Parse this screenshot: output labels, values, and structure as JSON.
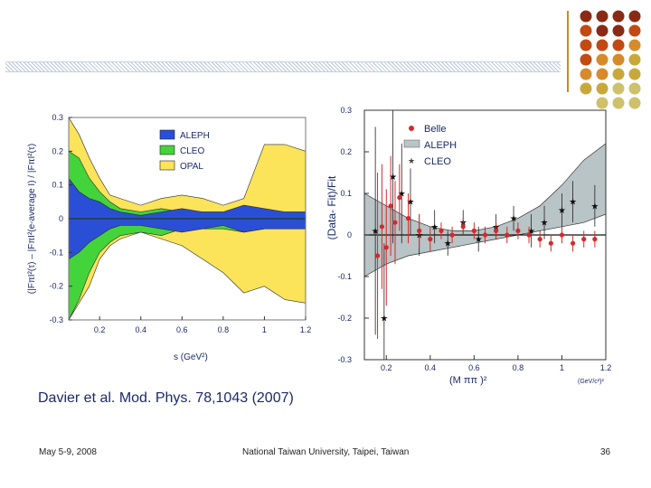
{
  "slide": {
    "caption": "Davier et al. Mod. Phys. 78,1043 (2007)",
    "footer_date": "May 5-9,  2008",
    "footer_venue": "National Taiwan University, Taipei, Taiwan",
    "page_number": "36",
    "dot_colors": [
      "#8b2a14",
      "#c24a12",
      "#d68a2a",
      "#c9a83a",
      "#cfc06a"
    ]
  },
  "chart_data": [
    {
      "type": "area",
      "title": "",
      "xlabel": "s  (GeV²)",
      "ylabel": "(|FπI²(τ) – |FπI²(e-average I) / |FπI²(τ)",
      "xlim": [
        0.05,
        1.2
      ],
      "ylim": [
        -0.3,
        0.3
      ],
      "x_ticks": [
        "0.2",
        "0.4",
        "0.6",
        "0.8",
        "1",
        "1.2"
      ],
      "y_ticks": [
        "0.3",
        "0.2",
        "0.1",
        "0",
        "-0.1",
        "-0.2",
        "-0.3"
      ],
      "legend": [
        "ALEPH",
        "CLEO",
        "OPAL"
      ],
      "legend_colors": [
        "#2a4fd6",
        "#43d43b",
        "#fbe35a"
      ],
      "legend_position": "top-right",
      "series": [
        {
          "name": "OPAL",
          "x": [
            0.05,
            0.1,
            0.15,
            0.2,
            0.25,
            0.3,
            0.4,
            0.5,
            0.6,
            0.7,
            0.8,
            0.9,
            1.0,
            1.1,
            1.2
          ],
          "upper": [
            0.3,
            0.25,
            0.18,
            0.12,
            0.07,
            0.06,
            0.04,
            0.06,
            0.07,
            0.06,
            0.04,
            0.06,
            0.22,
            0.22,
            0.2
          ],
          "lower": [
            -0.3,
            -0.25,
            -0.2,
            -0.12,
            -0.08,
            -0.06,
            -0.04,
            -0.06,
            -0.08,
            -0.12,
            -0.16,
            -0.22,
            -0.2,
            -0.24,
            -0.25
          ]
        },
        {
          "name": "CLEO",
          "x": [
            0.05,
            0.1,
            0.15,
            0.2,
            0.25,
            0.3,
            0.4,
            0.5,
            0.6,
            0.7,
            0.8,
            0.9,
            1.0,
            1.1,
            1.2
          ],
          "upper": [
            0.2,
            0.18,
            0.12,
            0.08,
            0.05,
            0.03,
            0.02,
            0.03,
            0.02,
            0.02,
            0.02,
            0.03,
            0.02,
            0.02,
            0.02
          ],
          "lower": [
            -0.3,
            -0.24,
            -0.16,
            -0.1,
            -0.07,
            -0.05,
            -0.04,
            -0.05,
            -0.03,
            -0.03,
            -0.03,
            -0.04,
            -0.03,
            -0.03,
            -0.03
          ]
        },
        {
          "name": "ALEPH",
          "x": [
            0.05,
            0.1,
            0.15,
            0.2,
            0.25,
            0.3,
            0.4,
            0.5,
            0.6,
            0.7,
            0.8,
            0.9,
            1.0,
            1.1,
            1.2
          ],
          "upper": [
            0.12,
            0.08,
            0.06,
            0.05,
            0.03,
            0.02,
            0.01,
            0.02,
            0.03,
            0.02,
            0.02,
            0.04,
            0.03,
            0.02,
            0.02
          ],
          "lower": [
            -0.12,
            -0.1,
            -0.07,
            -0.05,
            -0.03,
            -0.02,
            -0.02,
            -0.03,
            -0.04,
            -0.03,
            -0.02,
            -0.04,
            -0.03,
            -0.03,
            -0.03
          ]
        }
      ]
    },
    {
      "type": "scatter",
      "title": "",
      "xlabel": "(M ππ )²",
      "xunit": "(GeV/c²)²",
      "ylabel": "(Data- Fit)/Fit",
      "xlim": [
        0.1,
        1.2
      ],
      "ylim": [
        -0.3,
        0.3
      ],
      "x_ticks": [
        "0.2",
        "0.4",
        "0.6",
        "0.8",
        "1",
        "1.2"
      ],
      "y_ticks": [
        "0.3",
        "0.2",
        "0.1",
        "0",
        "-0.1",
        "-0.2",
        "-0.3"
      ],
      "legend": [
        "Belle",
        "ALEPH",
        "CLEO"
      ],
      "legend_position": "top-right",
      "aleph_band": {
        "x": [
          0.1,
          0.2,
          0.3,
          0.4,
          0.5,
          0.6,
          0.7,
          0.8,
          0.9,
          1.0,
          1.1,
          1.2
        ],
        "upper": [
          0.1,
          0.07,
          0.04,
          0.02,
          0.01,
          0.01,
          0.02,
          0.04,
          0.07,
          0.12,
          0.18,
          0.22
        ],
        "lower": [
          -0.1,
          -0.07,
          -0.05,
          -0.04,
          -0.03,
          -0.02,
          -0.01,
          0.0,
          0.01,
          0.02,
          0.03,
          0.05
        ]
      },
      "belle": {
        "x": [
          0.16,
          0.18,
          0.2,
          0.22,
          0.24,
          0.26,
          0.3,
          0.35,
          0.4,
          0.45,
          0.5,
          0.55,
          0.6,
          0.65,
          0.7,
          0.75,
          0.8,
          0.85,
          0.9,
          0.95,
          1.0,
          1.05,
          1.1,
          1.15
        ],
        "y": [
          -0.05,
          0.02,
          -0.03,
          0.07,
          0.03,
          0.09,
          0.04,
          0.01,
          -0.01,
          0.01,
          0.0,
          0.02,
          0.01,
          0.0,
          0.01,
          0.0,
          0.01,
          0.0,
          -0.01,
          -0.02,
          0.0,
          -0.02,
          -0.01,
          -0.01
        ],
        "err": [
          0.2,
          0.15,
          0.14,
          0.12,
          0.1,
          0.08,
          0.06,
          0.04,
          0.03,
          0.02,
          0.02,
          0.02,
          0.02,
          0.02,
          0.02,
          0.02,
          0.02,
          0.02,
          0.02,
          0.02,
          0.02,
          0.02,
          0.02,
          0.02
        ]
      },
      "cleo": {
        "x": [
          0.15,
          0.19,
          0.23,
          0.27,
          0.31,
          0.35,
          0.42,
          0.48,
          0.55,
          0.62,
          0.7,
          0.78,
          0.86,
          0.92,
          1.0,
          1.05,
          1.15
        ],
        "y": [
          0.01,
          -0.2,
          0.14,
          0.1,
          0.08,
          0.0,
          0.02,
          -0.02,
          0.03,
          -0.01,
          0.02,
          0.04,
          0.01,
          0.03,
          0.06,
          0.08,
          0.07
        ],
        "err": [
          0.25,
          0.18,
          0.16,
          0.12,
          0.08,
          0.05,
          0.04,
          0.03,
          0.03,
          0.03,
          0.03,
          0.03,
          0.04,
          0.04,
          0.04,
          0.05,
          0.05
        ]
      }
    }
  ]
}
